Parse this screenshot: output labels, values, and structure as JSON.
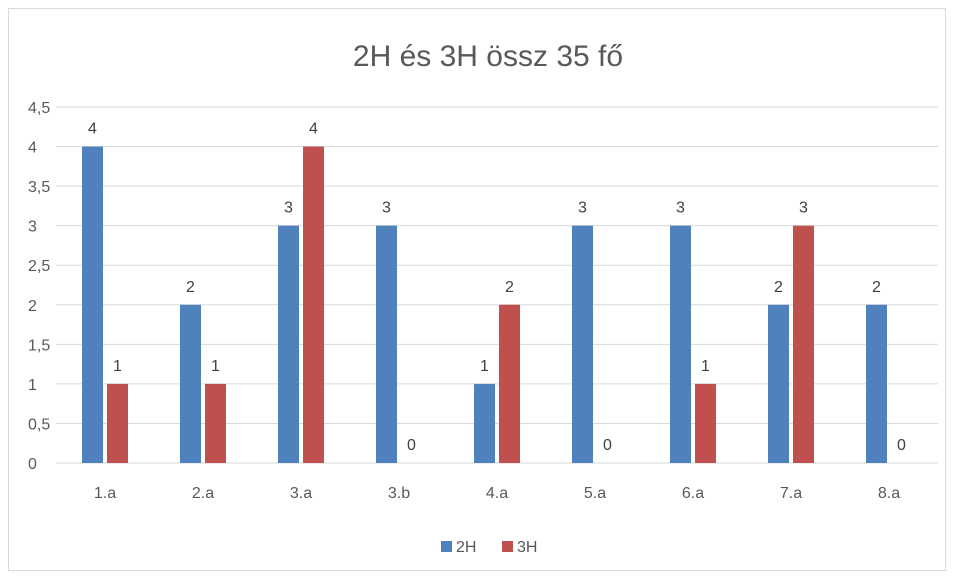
{
  "chart_data": {
    "type": "bar",
    "title": "2H és 3H össz 35 fő",
    "xlabel": "",
    "ylabel": "",
    "categories": [
      "1.a",
      "2.a",
      "3.a",
      "3.b",
      "4.a",
      "5.a",
      "6.a",
      "7.a",
      "8.a"
    ],
    "series": [
      {
        "name": "2H",
        "color": "#4f81bd",
        "values": [
          4,
          2,
          3,
          3,
          1,
          3,
          3,
          2,
          2
        ]
      },
      {
        "name": "3H",
        "color": "#c0504d",
        "values": [
          1,
          1,
          4,
          0,
          2,
          0,
          1,
          3,
          0
        ]
      }
    ],
    "ylim": [
      0,
      4.5
    ],
    "yticks": [
      "0",
      "0,5",
      "1",
      "1,5",
      "2",
      "2,5",
      "3",
      "3,5",
      "4",
      "4,5"
    ],
    "grid": true,
    "legend": "bottom",
    "data_labels": true
  }
}
